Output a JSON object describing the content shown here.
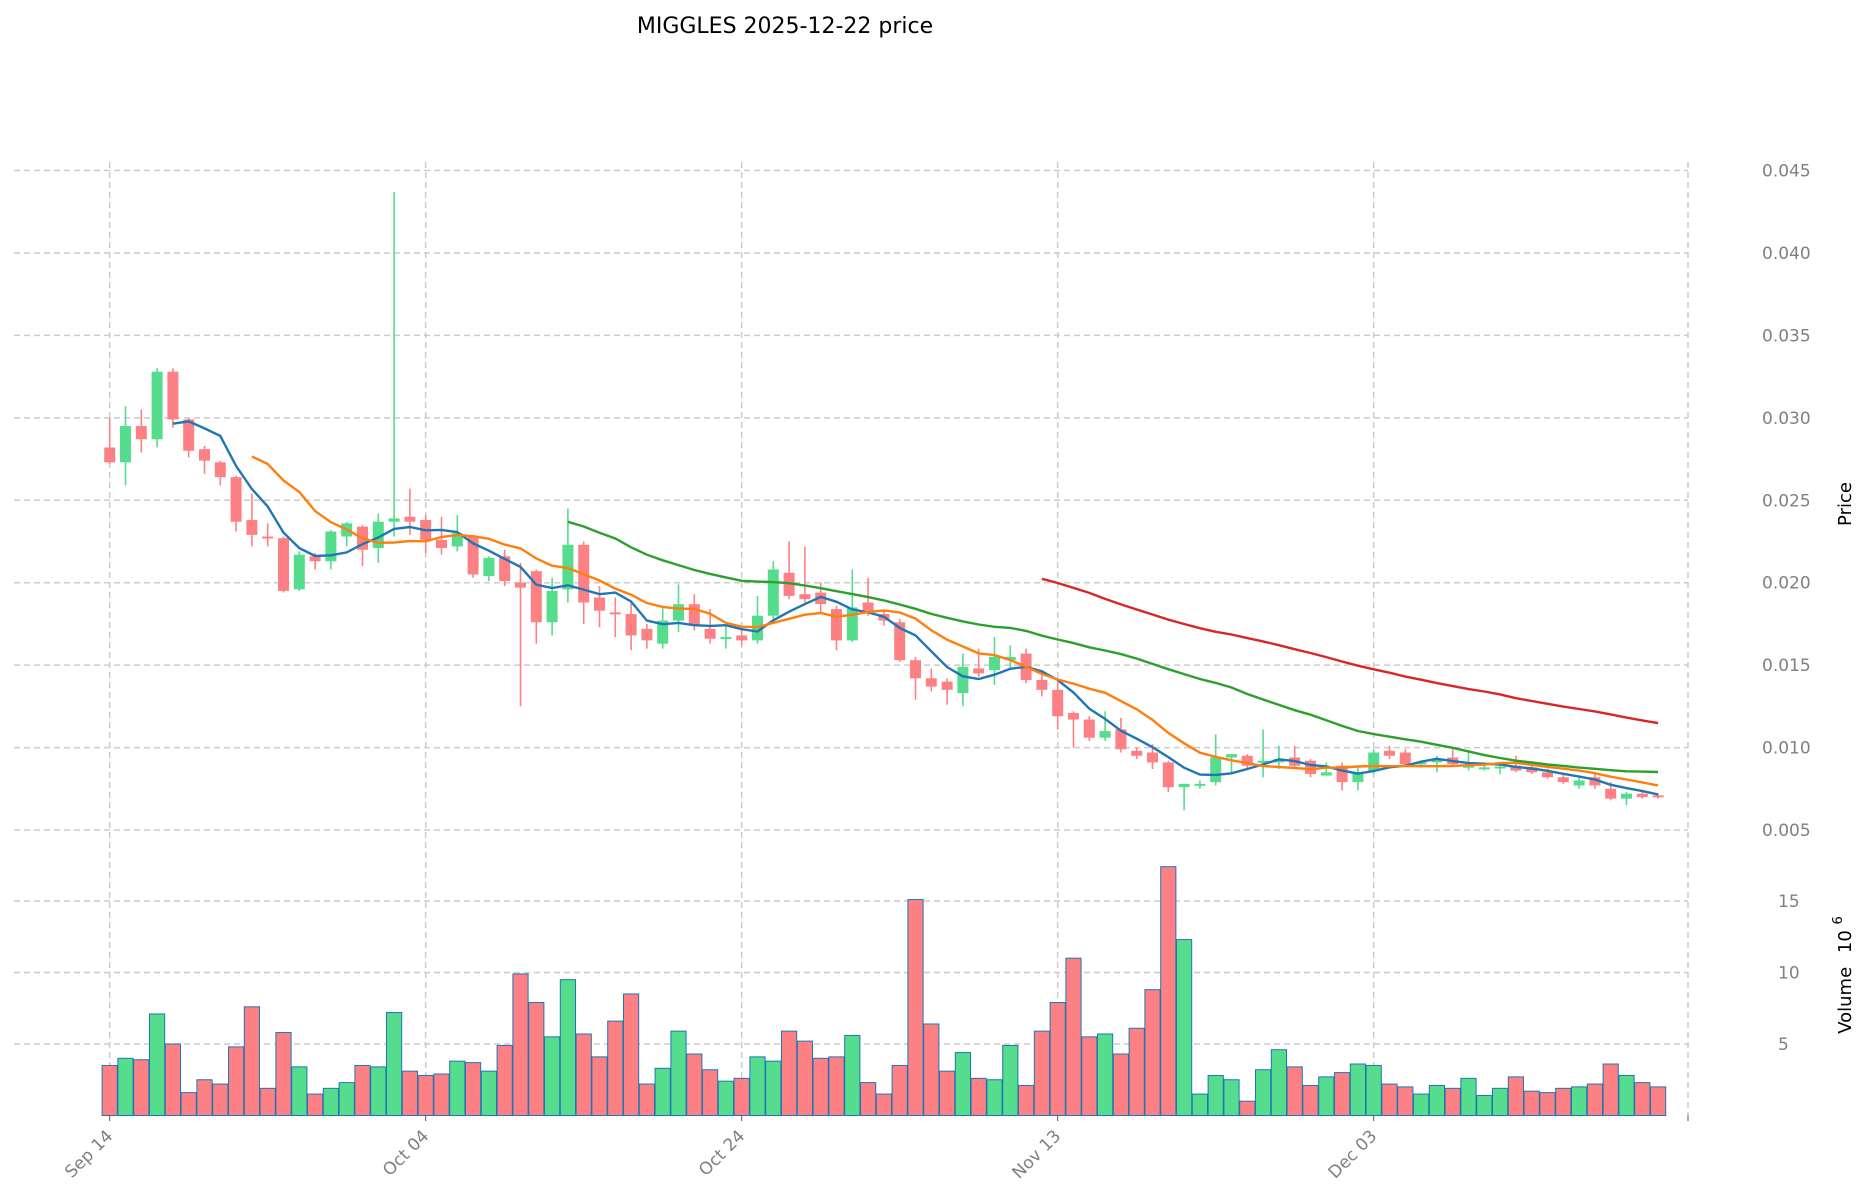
{
  "chart_data": {
    "type": "candlestick",
    "title": "MIGGLES  2025-12-22  price",
    "price_axis": {
      "label": "Price",
      "ticks": [
        "0.005",
        "0.010",
        "0.015",
        "0.020",
        "0.025",
        "0.030",
        "0.035",
        "0.040",
        "0.045"
      ],
      "ylim": [
        0.0025,
        0.0455
      ]
    },
    "volume_axis": {
      "label": "Volume",
      "exponent_base": "10",
      "exponent": "6",
      "ticks": [
        "5",
        "10",
        "15"
      ],
      "ylim": [
        0,
        18
      ]
    },
    "x_ticks": [
      {
        "label": "Sep 14",
        "index": 0
      },
      {
        "label": "Oct 04",
        "index": 20
      },
      {
        "label": "Oct 24",
        "index": 40
      },
      {
        "label": "Nov 13",
        "index": 60
      },
      {
        "label": "Dec 03",
        "index": 80
      }
    ],
    "grid": true,
    "colors": {
      "up": "#55dd8d",
      "down": "#fd8184",
      "volume_edge": "#1f77b4",
      "ma": [
        "#1f77b4",
        "#ff7f0e",
        "#2ca02c",
        "#d62728"
      ]
    },
    "ma_windows": [
      5,
      10,
      30,
      60
    ],
    "ohlc": [
      [
        0.0282,
        0.03,
        0.0272,
        0.0273
      ],
      [
        0.0273,
        0.0307,
        0.0259,
        0.0295
      ],
      [
        0.0295,
        0.0305,
        0.0279,
        0.0287
      ],
      [
        0.0287,
        0.033,
        0.0282,
        0.0328
      ],
      [
        0.0328,
        0.033,
        0.0294,
        0.0299
      ],
      [
        0.0299,
        0.03,
        0.0276,
        0.028
      ],
      [
        0.0281,
        0.0283,
        0.0266,
        0.0274
      ],
      [
        0.0273,
        0.0274,
        0.0259,
        0.0264
      ],
      [
        0.0264,
        0.0265,
        0.0231,
        0.0237
      ],
      [
        0.0238,
        0.0254,
        0.0222,
        0.0229
      ],
      [
        0.0228,
        0.0236,
        0.0222,
        0.0227
      ],
      [
        0.0227,
        0.0228,
        0.0194,
        0.0195
      ],
      [
        0.0196,
        0.0219,
        0.0195,
        0.0217
      ],
      [
        0.0216,
        0.0218,
        0.0208,
        0.0213
      ],
      [
        0.0213,
        0.0232,
        0.0208,
        0.0231
      ],
      [
        0.0228,
        0.0237,
        0.0222,
        0.0236
      ],
      [
        0.0234,
        0.0235,
        0.021,
        0.022
      ],
      [
        0.0221,
        0.0242,
        0.0212,
        0.0237
      ],
      [
        0.0237,
        0.0437,
        0.0228,
        0.0239
      ],
      [
        0.024,
        0.0257,
        0.0229,
        0.0237
      ],
      [
        0.0238,
        0.0241,
        0.0218,
        0.0226
      ],
      [
        0.0226,
        0.024,
        0.0217,
        0.0221
      ],
      [
        0.0222,
        0.0241,
        0.0219,
        0.023
      ],
      [
        0.0228,
        0.0229,
        0.0203,
        0.0205
      ],
      [
        0.0204,
        0.0216,
        0.0201,
        0.0215
      ],
      [
        0.0216,
        0.022,
        0.0198,
        0.0201
      ],
      [
        0.02,
        0.0212,
        0.0125,
        0.0197
      ],
      [
        0.0207,
        0.0208,
        0.0163,
        0.0176
      ],
      [
        0.0176,
        0.0203,
        0.0168,
        0.0195
      ],
      [
        0.0196,
        0.0245,
        0.0188,
        0.0223
      ],
      [
        0.0223,
        0.0225,
        0.0175,
        0.0188
      ],
      [
        0.0191,
        0.0198,
        0.0173,
        0.0183
      ],
      [
        0.0182,
        0.0191,
        0.0167,
        0.0181
      ],
      [
        0.0181,
        0.0188,
        0.0159,
        0.0168
      ],
      [
        0.0172,
        0.0175,
        0.016,
        0.0165
      ],
      [
        0.0163,
        0.0185,
        0.016,
        0.0177
      ],
      [
        0.0177,
        0.0199,
        0.017,
        0.0187
      ],
      [
        0.0187,
        0.0193,
        0.0171,
        0.0174
      ],
      [
        0.0172,
        0.0184,
        0.0163,
        0.0166
      ],
      [
        0.0166,
        0.0174,
        0.016,
        0.0167
      ],
      [
        0.0168,
        0.0171,
        0.0162,
        0.0165
      ],
      [
        0.0165,
        0.0192,
        0.0163,
        0.018
      ],
      [
        0.018,
        0.0213,
        0.0178,
        0.0208
      ],
      [
        0.0206,
        0.0225,
        0.019,
        0.0192
      ],
      [
        0.0193,
        0.0222,
        0.0188,
        0.019
      ],
      [
        0.0194,
        0.02,
        0.0182,
        0.0187
      ],
      [
        0.0184,
        0.0186,
        0.0159,
        0.0165
      ],
      [
        0.0165,
        0.0208,
        0.0164,
        0.0185
      ],
      [
        0.0188,
        0.0203,
        0.018,
        0.0183
      ],
      [
        0.0181,
        0.0183,
        0.0174,
        0.0177
      ],
      [
        0.0176,
        0.0178,
        0.0152,
        0.0153
      ],
      [
        0.0153,
        0.0155,
        0.0129,
        0.0142
      ],
      [
        0.0142,
        0.0148,
        0.0134,
        0.0137
      ],
      [
        0.014,
        0.0142,
        0.0126,
        0.0135
      ],
      [
        0.0133,
        0.0157,
        0.0125,
        0.0149
      ],
      [
        0.0148,
        0.016,
        0.0143,
        0.0145
      ],
      [
        0.0147,
        0.0167,
        0.0138,
        0.0155
      ],
      [
        0.0153,
        0.0162,
        0.0148,
        0.0155
      ],
      [
        0.0157,
        0.016,
        0.0139,
        0.0141
      ],
      [
        0.0141,
        0.0147,
        0.0131,
        0.0135
      ],
      [
        0.0135,
        0.014,
        0.0111,
        0.0119
      ],
      [
        0.0121,
        0.0122,
        0.01,
        0.0117
      ],
      [
        0.0117,
        0.0119,
        0.0104,
        0.0106
      ],
      [
        0.0106,
        0.0122,
        0.0104,
        0.011
      ],
      [
        0.0111,
        0.0118,
        0.0097,
        0.0099
      ],
      [
        0.0098,
        0.01,
        0.0093,
        0.0095
      ],
      [
        0.0097,
        0.0102,
        0.0087,
        0.0091
      ],
      [
        0.0091,
        0.0092,
        0.0073,
        0.0076
      ],
      [
        0.0076,
        0.0078,
        0.0062,
        0.0078
      ],
      [
        0.0077,
        0.008,
        0.0075,
        0.0078
      ],
      [
        0.0079,
        0.0108,
        0.0077,
        0.0094
      ],
      [
        0.0094,
        0.0096,
        0.0085,
        0.0096
      ],
      [
        0.0095,
        0.0096,
        0.0087,
        0.0089
      ],
      [
        0.0091,
        0.0111,
        0.0082,
        0.0092
      ],
      [
        0.0091,
        0.0101,
        0.0087,
        0.0093
      ],
      [
        0.0094,
        0.0101,
        0.0087,
        0.0089
      ],
      [
        0.0092,
        0.0093,
        0.0082,
        0.0084
      ],
      [
        0.0083,
        0.0091,
        0.0083,
        0.0085
      ],
      [
        0.0089,
        0.0091,
        0.0074,
        0.0079
      ],
      [
        0.0079,
        0.0089,
        0.0074,
        0.0084
      ],
      [
        0.0086,
        0.0099,
        0.0084,
        0.0097
      ],
      [
        0.0098,
        0.0101,
        0.0093,
        0.0095
      ],
      [
        0.0097,
        0.0099,
        0.0088,
        0.009
      ],
      [
        0.009,
        0.0092,
        0.0088,
        0.0091
      ],
      [
        0.0091,
        0.0095,
        0.0085,
        0.0093
      ],
      [
        0.0094,
        0.0099,
        0.0089,
        0.009
      ],
      [
        0.0088,
        0.0097,
        0.0086,
        0.0089
      ],
      [
        0.0087,
        0.0089,
        0.0086,
        0.0088
      ],
      [
        0.0088,
        0.0091,
        0.0084,
        0.00885
      ],
      [
        0.0089,
        0.0095,
        0.0085,
        0.0086
      ],
      [
        0.0088,
        0.0089,
        0.0084,
        0.0085
      ],
      [
        0.0085,
        0.0087,
        0.0081,
        0.0082
      ],
      [
        0.0082,
        0.0084,
        0.0078,
        0.0079
      ],
      [
        0.0077,
        0.0083,
        0.0075,
        0.008
      ],
      [
        0.0082,
        0.0084,
        0.0075,
        0.0077
      ],
      [
        0.0075,
        0.0079,
        0.0068,
        0.0069
      ],
      [
        0.0069,
        0.0073,
        0.0065,
        0.0072
      ],
      [
        0.0072,
        0.0073,
        0.0069,
        0.007
      ],
      [
        0.0071,
        0.0072,
        0.0069,
        0.007
      ]
    ],
    "volume_millions": [
      3.5,
      4.0,
      3.9,
      7.1,
      5.0,
      1.6,
      2.5,
      2.2,
      4.8,
      7.6,
      1.9,
      5.8,
      3.4,
      1.5,
      1.9,
      2.3,
      3.5,
      3.4,
      7.2,
      3.1,
      2.8,
      2.9,
      3.8,
      3.7,
      3.1,
      4.9,
      9.9,
      7.9,
      5.5,
      9.5,
      5.7,
      4.1,
      6.6,
      8.5,
      2.2,
      3.3,
      5.9,
      4.3,
      3.2,
      2.4,
      2.6,
      4.1,
      3.8,
      5.9,
      5.2,
      4.0,
      4.1,
      5.6,
      2.3,
      1.5,
      3.5,
      15.1,
      6.4,
      3.1,
      4.4,
      2.6,
      2.5,
      4.9,
      2.1,
      5.9,
      7.9,
      11.0,
      5.5,
      5.7,
      4.3,
      6.1,
      8.8,
      17.4,
      12.3,
      1.5,
      2.8,
      2.5,
      1.0,
      3.2,
      4.6,
      3.4,
      2.1,
      2.7,
      3.0,
      3.6,
      3.5,
      2.2,
      2.0,
      1.5,
      2.1,
      1.9,
      2.6,
      1.4,
      1.9,
      2.7,
      1.7,
      1.6,
      1.9,
      2.0,
      2.2,
      3.6,
      2.8,
      2.3,
      2.0
    ]
  }
}
